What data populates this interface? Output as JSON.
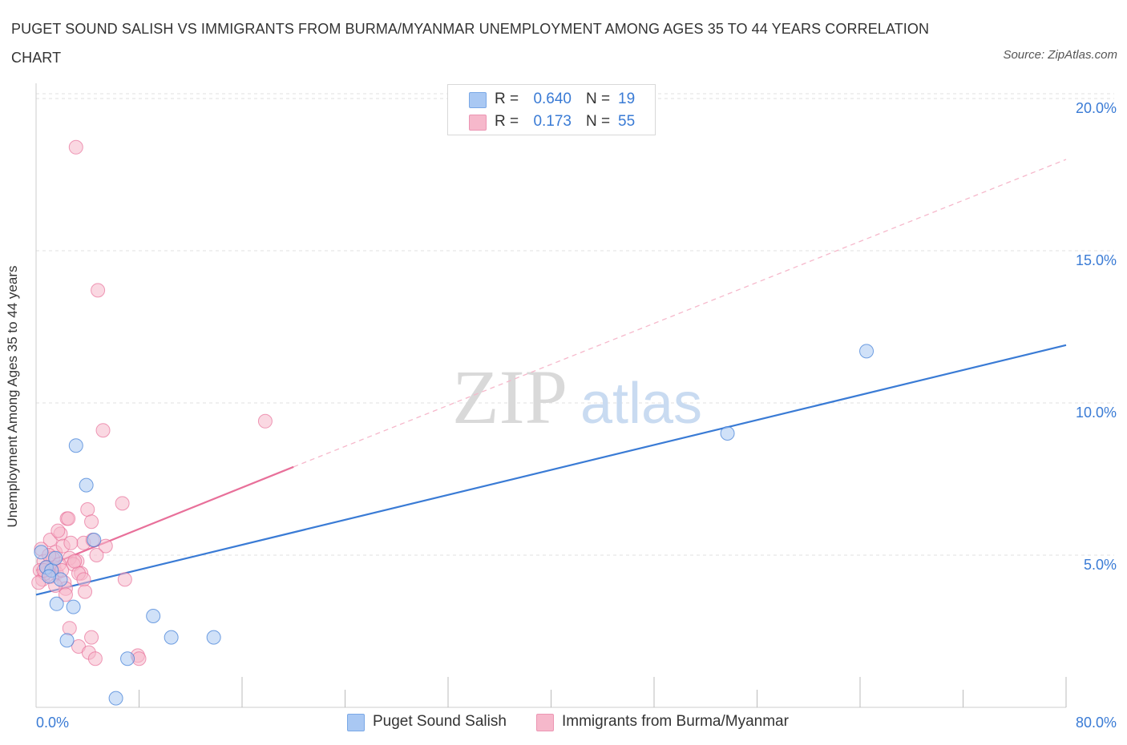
{
  "title": "PUGET SOUND SALISH VS IMMIGRANTS FROM BURMA/MYANMAR UNEMPLOYMENT AMONG AGES 35 TO 44 YEARS CORRELATION CHART",
  "source": "Source: ZipAtlas.com",
  "watermark": {
    "zip": "ZIP",
    "atlas": "atlas"
  },
  "legend": {
    "rows": [
      {
        "r_label": "R =",
        "r_value": "0.640",
        "n_label": "N =",
        "n_value": "19",
        "color": "#a9c8f3"
      },
      {
        "r_label": "R =",
        "r_value": "0.173",
        "n_label": "N =",
        "n_value": "55",
        "color": "#f6b8cb"
      }
    ]
  },
  "chart_data": {
    "type": "scatter",
    "title": "PUGET SOUND SALISH VS IMMIGRANTS FROM BURMA/MYANMAR UNEMPLOYMENT AMONG AGES 35 TO 44 YEARS CORRELATION CHART",
    "xlabel": "",
    "ylabel": "Unemployment Among Ages 35 to 44 years",
    "xlim": [
      0,
      80
    ],
    "ylim": [
      0,
      20.5
    ],
    "x_tick_labels": [
      "0.0%",
      "80.0%"
    ],
    "y_ticks": [
      5,
      10,
      15,
      20
    ],
    "y_tick_labels": [
      "5.0%",
      "10.0%",
      "15.0%",
      "20.0%"
    ],
    "grid": true,
    "legend_position": "top-center",
    "series": [
      {
        "name": "Puget Sound Salish",
        "color": "#3a7bd5",
        "fill": "#a9c8f3",
        "points": [
          [
            0.4,
            5.1
          ],
          [
            0.8,
            4.6
          ],
          [
            1.2,
            4.5
          ],
          [
            1.5,
            4.9
          ],
          [
            1.9,
            4.2
          ],
          [
            1.6,
            3.4
          ],
          [
            2.9,
            3.3
          ],
          [
            2.4,
            2.2
          ],
          [
            3.1,
            8.6
          ],
          [
            3.9,
            7.3
          ],
          [
            4.5,
            5.5
          ],
          [
            6.2,
            0.3
          ],
          [
            7.1,
            1.6
          ],
          [
            9.1,
            3.0
          ],
          [
            10.5,
            2.3
          ],
          [
            13.8,
            2.3
          ],
          [
            53.7,
            9.0
          ],
          [
            64.5,
            11.7
          ],
          [
            1.0,
            4.3
          ]
        ],
        "trend": {
          "x": [
            0,
            80
          ],
          "y": [
            3.7,
            11.9
          ],
          "style": "solid"
        }
      },
      {
        "name": "Immigrants from Burma/Myanmar",
        "color": "#e8709a",
        "fill": "#f6b8cb",
        "points": [
          [
            3.1,
            18.4
          ],
          [
            4.8,
            13.7
          ],
          [
            17.8,
            9.4
          ],
          [
            5.2,
            9.1
          ],
          [
            6.7,
            6.7
          ],
          [
            4.0,
            6.5
          ],
          [
            2.4,
            6.2
          ],
          [
            4.3,
            6.1
          ],
          [
            3.7,
            5.4
          ],
          [
            1.1,
            5.5
          ],
          [
            1.9,
            5.7
          ],
          [
            4.4,
            5.5
          ],
          [
            5.4,
            5.3
          ],
          [
            0.4,
            5.2
          ],
          [
            1.5,
            5.1
          ],
          [
            4.7,
            5.0
          ],
          [
            3.2,
            4.8
          ],
          [
            0.6,
            4.8
          ],
          [
            1.3,
            4.9
          ],
          [
            2.6,
            4.9
          ],
          [
            2.1,
            5.3
          ],
          [
            0.9,
            4.6
          ],
          [
            1.4,
            4.6
          ],
          [
            2.9,
            4.7
          ],
          [
            0.3,
            4.5
          ],
          [
            1.6,
            4.4
          ],
          [
            3.5,
            4.4
          ],
          [
            0.5,
            4.2
          ],
          [
            1.2,
            4.3
          ],
          [
            2.2,
            4.1
          ],
          [
            3.3,
            4.4
          ],
          [
            6.9,
            4.2
          ],
          [
            3.7,
            4.2
          ],
          [
            2.3,
            3.9
          ],
          [
            2.3,
            3.7
          ],
          [
            3.8,
            3.8
          ],
          [
            0.7,
            4.4
          ],
          [
            1.8,
            4.7
          ],
          [
            1.0,
            5.0
          ],
          [
            2.6,
            2.6
          ],
          [
            4.3,
            2.3
          ],
          [
            3.3,
            2.0
          ],
          [
            4.1,
            1.8
          ],
          [
            4.6,
            1.6
          ],
          [
            7.9,
            1.7
          ],
          [
            8.0,
            1.6
          ],
          [
            0.2,
            4.1
          ],
          [
            1.5,
            4.0
          ],
          [
            2.7,
            5.4
          ],
          [
            0.8,
            4.6
          ],
          [
            3.0,
            4.8
          ],
          [
            2.0,
            4.5
          ],
          [
            1.7,
            5.8
          ],
          [
            0.6,
            4.5
          ],
          [
            2.5,
            6.2
          ]
        ],
        "trend": {
          "x": [
            0,
            20
          ],
          "y": [
            4.5,
            7.9
          ],
          "style": "solid",
          "extended_to": [
            80,
            18.0
          ],
          "extended_style": "dashed"
        }
      }
    ]
  }
}
